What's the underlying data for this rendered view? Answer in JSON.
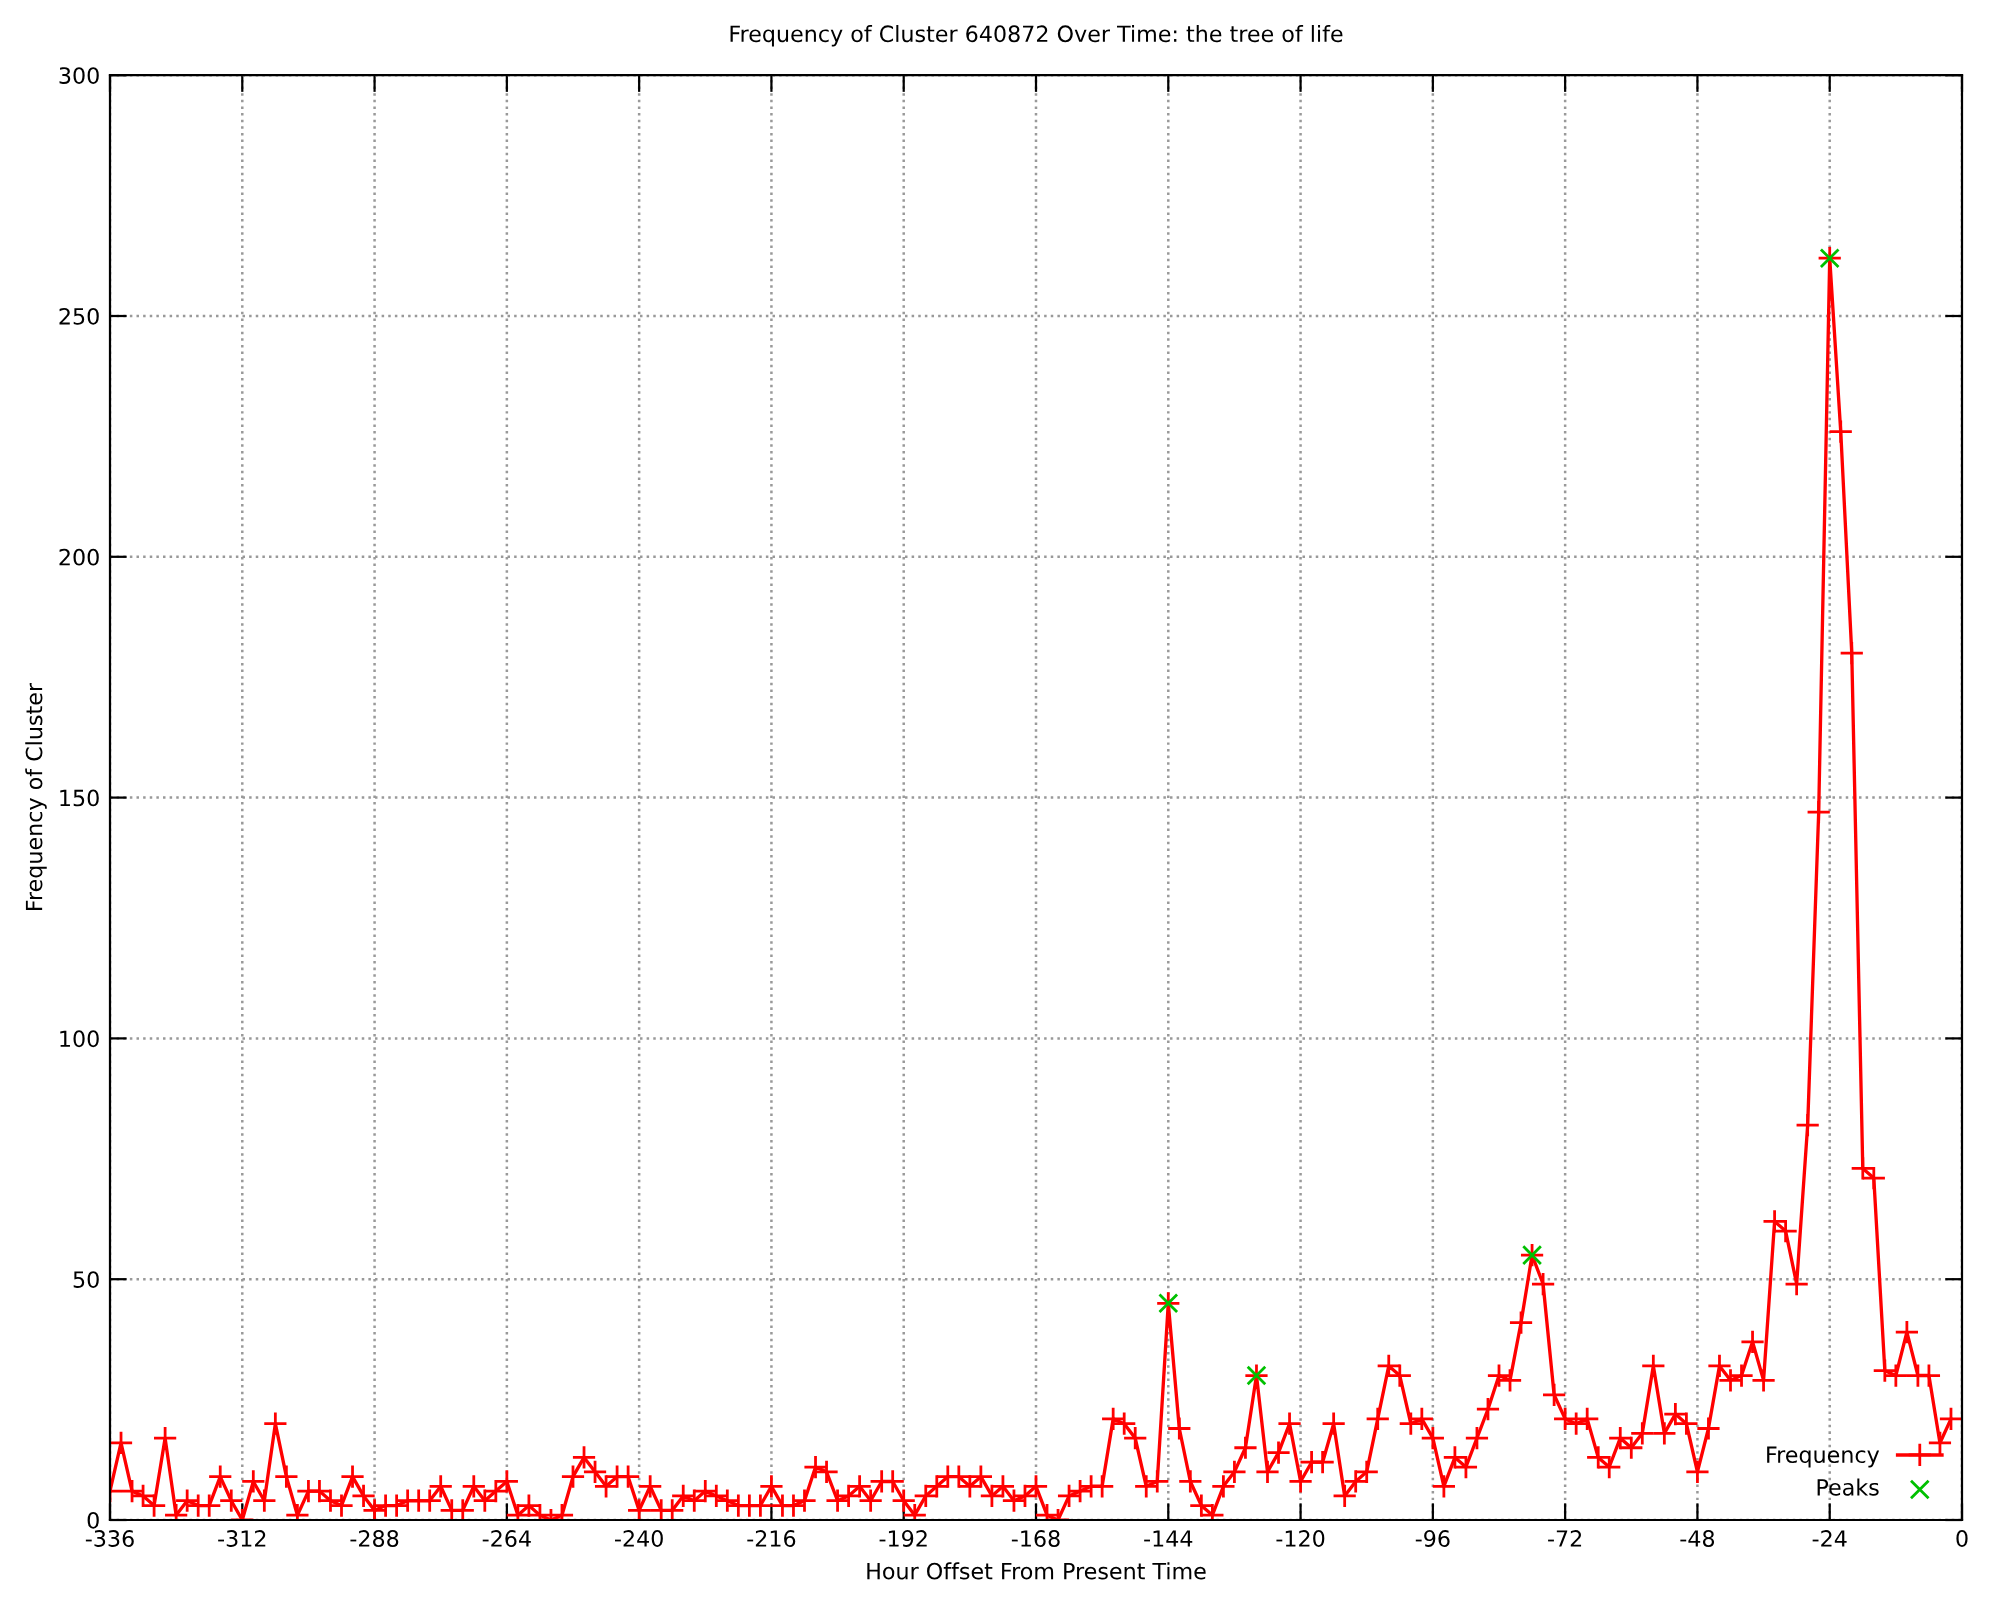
{
  "chart_data": {
    "type": "line",
    "title": "Frequency of Cluster 640872 Over Time: the tree of life",
    "xlabel": "Hour Offset From Present Time",
    "ylabel": "Frequency of Cluster",
    "xlim": [
      -336,
      0
    ],
    "xticks": [
      -336,
      -312,
      -288,
      -264,
      -240,
      -216,
      -192,
      -168,
      -144,
      -120,
      -96,
      -72,
      -48,
      -24,
      0
    ],
    "ylim": [
      0,
      300
    ],
    "yticks": [
      0,
      50,
      100,
      150,
      200,
      250,
      300
    ],
    "grid": true,
    "legend": "bottom right",
    "series": [
      {
        "name": "Frequency",
        "color": "#ff0000",
        "marker": "cross",
        "line_style": "solid",
        "x": [
          -336,
          -334,
          -332,
          -330,
          -328,
          -326,
          -324,
          -322,
          -320,
          -318,
          -316,
          -314,
          -312,
          -310,
          -308,
          -306,
          -304,
          -302,
          -300,
          -298,
          -296,
          -294,
          -292,
          -290,
          -288,
          -286,
          -284,
          -282,
          -280,
          -278,
          -276,
          -274,
          -272,
          -270,
          -268,
          -266,
          -264,
          -262,
          -260,
          -258,
          -256,
          -254,
          -252,
          -250,
          -248,
          -246,
          -244,
          -242,
          -240,
          -238,
          -236,
          -234,
          -232,
          -230,
          -228,
          -226,
          -224,
          -222,
          -220,
          -218,
          -216,
          -214,
          -212,
          -210,
          -208,
          -206,
          -204,
          -202,
          -200,
          -198,
          -196,
          -194,
          -192,
          -190,
          -188,
          -186,
          -184,
          -182,
          -180,
          -178,
          -176,
          -174,
          -172,
          -170,
          -168,
          -166,
          -164,
          -162,
          -160,
          -158,
          -156,
          -154,
          -152,
          -150,
          -148,
          -146,
          -144,
          -142,
          -140,
          -138,
          -136,
          -134,
          -132,
          -130,
          -128,
          -126,
          -124,
          -122,
          -120,
          -118,
          -116,
          -114,
          -112,
          -110,
          -108,
          -106,
          -104,
          -102,
          -100,
          -98,
          -96,
          -94,
          -92,
          -90,
          -88,
          -86,
          -84,
          -82,
          -80,
          -78,
          -76,
          -74,
          -72,
          -70,
          -68,
          -66,
          -64,
          -62,
          -60,
          -58,
          -56,
          -54,
          -52,
          -50,
          -48,
          -46,
          -44,
          -42,
          -40,
          -38,
          -36,
          -34,
          -32,
          -30,
          -28,
          -26,
          -24,
          -22,
          -20,
          -18,
          -16,
          -14,
          -12,
          -10,
          -8,
          -6,
          -4,
          -2
        ],
        "values": [
          6,
          16,
          6,
          5,
          3,
          17,
          1,
          4,
          3,
          3,
          9,
          4,
          0,
          8,
          4,
          20,
          9,
          1,
          6,
          6,
          4,
          3,
          9,
          5,
          2,
          3,
          3,
          4,
          4,
          4,
          7,
          2,
          2,
          7,
          4,
          6,
          8,
          1,
          3,
          1,
          0,
          1,
          9,
          13,
          10,
          7,
          9,
          9,
          2,
          7,
          2,
          2,
          5,
          4,
          6,
          5,
          4,
          3,
          3,
          3,
          7,
          3,
          3,
          4,
          11,
          10,
          4,
          5,
          7,
          4,
          8,
          8,
          4,
          1,
          5,
          7,
          9,
          9,
          7,
          9,
          5,
          7,
          4,
          5,
          7,
          1,
          0,
          5,
          6,
          7,
          7,
          21,
          20,
          17,
          7,
          8,
          45,
          19,
          8,
          3,
          1,
          7,
          10,
          15,
          30,
          10,
          14,
          20,
          8,
          12,
          12,
          20,
          5,
          8,
          10,
          21,
          32,
          30,
          20,
          21,
          17,
          7,
          13,
          11,
          17,
          23,
          30,
          29,
          41,
          55,
          49,
          26,
          21,
          20,
          21,
          13,
          11,
          17,
          15,
          18,
          32,
          18,
          22,
          20,
          10,
          19,
          32,
          29,
          30,
          37,
          29,
          62,
          60,
          49,
          82,
          147,
          262,
          226,
          180,
          73,
          71,
          31,
          30,
          39,
          30,
          30,
          16,
          21
        ]
      },
      {
        "name": "Peaks",
        "type": "scatter",
        "color": "#00c000",
        "marker": "cross",
        "x": [
          -144,
          -128,
          -78,
          -24
        ],
        "values": [
          45,
          30,
          55,
          262
        ]
      }
    ]
  }
}
